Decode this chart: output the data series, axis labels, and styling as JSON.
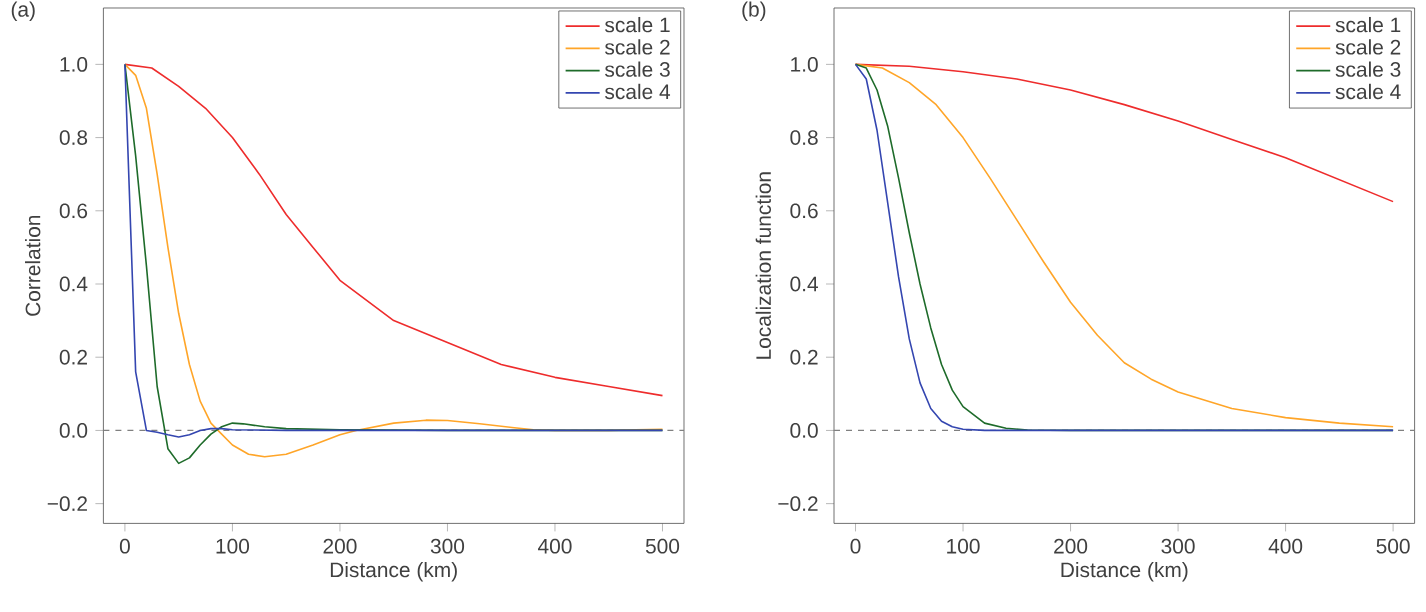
{
  "chart_data": [
    {
      "type": "line",
      "title": "(a)",
      "xlabel": "Distance (km)",
      "ylabel": "Correlation",
      "xlim": [
        -20,
        520
      ],
      "ylim": [
        -0.254,
        1.154
      ],
      "xticks": [
        0,
        100,
        200,
        300,
        400,
        500
      ],
      "yticks": [
        {
          "value": -0.2,
          "label": "−0.2"
        },
        {
          "value": 0,
          "label": "0.0"
        },
        {
          "value": 0.2,
          "label": "0.2"
        },
        {
          "value": 0.4,
          "label": "0.4"
        },
        {
          "value": 0.6,
          "label": "0.6"
        },
        {
          "value": 0.8,
          "label": "0.8"
        },
        {
          "value": 1,
          "label": "1.0"
        }
      ],
      "legend": "top right",
      "grid": false,
      "ref_lines": [
        {
          "axis": "y",
          "value": 0,
          "color": "#808080",
          "line_style": "dashed"
        }
      ],
      "series": [
        {
          "name": "scale 1",
          "color": "#ee2c2c",
          "x": [
            0,
            25,
            50,
            75,
            100,
            125,
            150,
            175,
            200,
            250,
            300,
            350,
            400,
            450,
            500
          ],
          "values": [
            1.0,
            0.99,
            0.94,
            0.88,
            0.8,
            0.7,
            0.59,
            0.5,
            0.41,
            0.3,
            0.24,
            0.18,
            0.145,
            0.12,
            0.095
          ]
        },
        {
          "name": "scale 2",
          "color": "#ffa528",
          "x": [
            0,
            10,
            20,
            30,
            40,
            50,
            60,
            70,
            80,
            90,
            100,
            115,
            130,
            150,
            175,
            200,
            215,
            250,
            280,
            300,
            330,
            360,
            380,
            400,
            450,
            500
          ],
          "values": [
            1.0,
            0.97,
            0.88,
            0.7,
            0.5,
            0.32,
            0.18,
            0.08,
            0.02,
            -0.01,
            -0.04,
            -0.065,
            -0.072,
            -0.065,
            -0.04,
            -0.012,
            0,
            0.02,
            0.028,
            0.027,
            0.018,
            0.008,
            0.002,
            0,
            0,
            0.003
          ]
        },
        {
          "name": "scale 3",
          "color": "#1e6b2a",
          "x": [
            0,
            10,
            20,
            30,
            40,
            50,
            60,
            70,
            80,
            90,
            100,
            110,
            130,
            150,
            200,
            300,
            500
          ],
          "values": [
            1.0,
            0.75,
            0.45,
            0.12,
            -0.05,
            -0.09,
            -0.075,
            -0.04,
            -0.01,
            0.01,
            0.02,
            0.018,
            0.01,
            0.005,
            0.002,
            0,
            0
          ]
        },
        {
          "name": "scale 4",
          "color": "#3446b0",
          "x": [
            0,
            10,
            20,
            30,
            40,
            50,
            60,
            70,
            80,
            90,
            100,
            150,
            500
          ],
          "values": [
            1.0,
            0.16,
            0,
            -0.005,
            -0.012,
            -0.018,
            -0.012,
            0,
            0.005,
            0.005,
            0.002,
            0,
            0
          ]
        }
      ]
    },
    {
      "type": "line",
      "title": "(b)",
      "xlabel": "Distance (km)",
      "ylabel": "Localization function",
      "xlim": [
        -20,
        520
      ],
      "ylim": [
        -0.254,
        1.154
      ],
      "xticks": [
        0,
        100,
        200,
        300,
        400,
        500
      ],
      "yticks": [
        {
          "value": -0.2,
          "label": "−0.2"
        },
        {
          "value": 0,
          "label": "0.0"
        },
        {
          "value": 0.2,
          "label": "0.2"
        },
        {
          "value": 0.4,
          "label": "0.4"
        },
        {
          "value": 0.6,
          "label": "0.6"
        },
        {
          "value": 0.8,
          "label": "0.8"
        },
        {
          "value": 1,
          "label": "1.0"
        }
      ],
      "legend": "top right",
      "grid": false,
      "ref_lines": [
        {
          "axis": "y",
          "value": 0,
          "color": "#808080",
          "line_style": "dashed"
        }
      ],
      "series": [
        {
          "name": "scale 1",
          "color": "#ee2c2c",
          "x": [
            0,
            50,
            100,
            150,
            200,
            250,
            300,
            350,
            400,
            450,
            500
          ],
          "values": [
            1.0,
            0.995,
            0.98,
            0.96,
            0.93,
            0.89,
            0.845,
            0.795,
            0.745,
            0.685,
            0.625
          ]
        },
        {
          "name": "scale 2",
          "color": "#ffa528",
          "x": [
            0,
            25,
            50,
            75,
            100,
            125,
            150,
            175,
            200,
            225,
            250,
            275,
            300,
            350,
            400,
            450,
            500
          ],
          "values": [
            1.0,
            0.99,
            0.95,
            0.89,
            0.8,
            0.69,
            0.575,
            0.46,
            0.35,
            0.26,
            0.185,
            0.14,
            0.105,
            0.06,
            0.035,
            0.02,
            0.01
          ]
        },
        {
          "name": "scale 3",
          "color": "#1e6b2a",
          "x": [
            0,
            10,
            20,
            30,
            40,
            50,
            60,
            70,
            80,
            90,
            100,
            120,
            140,
            160,
            200,
            500
          ],
          "values": [
            1.0,
            0.99,
            0.93,
            0.83,
            0.69,
            0.54,
            0.4,
            0.28,
            0.18,
            0.11,
            0.065,
            0.02,
            0.006,
            0.001,
            0,
            0
          ]
        },
        {
          "name": "scale 4",
          "color": "#3446b0",
          "x": [
            0,
            10,
            20,
            30,
            40,
            50,
            60,
            70,
            80,
            90,
            100,
            120,
            500
          ],
          "values": [
            1.0,
            0.96,
            0.82,
            0.62,
            0.42,
            0.25,
            0.13,
            0.06,
            0.025,
            0.01,
            0.003,
            0,
            0
          ]
        }
      ]
    }
  ]
}
